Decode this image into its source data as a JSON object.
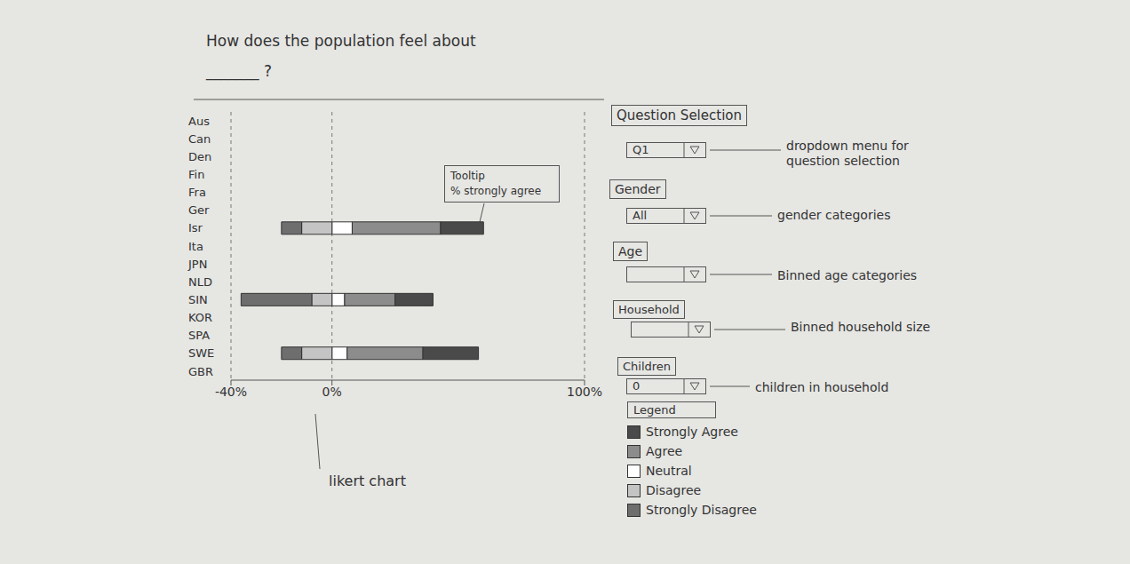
{
  "title": [
    "How does the population feel about",
    "_______ ?"
  ],
  "chart_data": {
    "type": "bar",
    "orientation": "horizontal",
    "stacked": true,
    "grid": true,
    "legend": "right",
    "categories": [
      "Aus",
      "Can",
      "Den",
      "Fin",
      "Fra",
      "Ger",
      "Isr",
      "Ita",
      "JPN",
      "NLD",
      "SIN",
      "KOR",
      "SPA",
      "SWE",
      "GBR"
    ],
    "xlim": [
      -40,
      100
    ],
    "xticks": [
      {
        "value": -40,
        "label": "-40%"
      },
      {
        "value": 0,
        "label": "0%"
      },
      {
        "value": 100,
        "label": "100%"
      }
    ],
    "series": [
      {
        "name": "Strongly Agree",
        "color": "#4a4a4a",
        "values": [
          null,
          null,
          null,
          null,
          null,
          null,
          17,
          null,
          null,
          null,
          15,
          null,
          null,
          22,
          null
        ]
      },
      {
        "name": "Agree",
        "color": "#8c8c8c",
        "values": [
          null,
          null,
          null,
          null,
          null,
          null,
          35,
          null,
          null,
          null,
          20,
          null,
          null,
          30,
          null
        ]
      },
      {
        "name": "Neutral",
        "color": "#ffffff",
        "values": [
          null,
          null,
          null,
          null,
          null,
          null,
          8,
          null,
          null,
          null,
          5,
          null,
          null,
          6,
          null
        ]
      },
      {
        "name": "Disagree",
        "color": "#c4c4c4",
        "values": [
          null,
          null,
          null,
          null,
          null,
          null,
          -12,
          null,
          null,
          null,
          -8,
          null,
          null,
          -12,
          null
        ]
      },
      {
        "name": "Strongly Disagree",
        "color": "#6e6e6e",
        "values": [
          null,
          null,
          null,
          null,
          null,
          null,
          -8,
          null,
          null,
          null,
          -28,
          null,
          null,
          -8,
          null
        ]
      }
    ]
  },
  "tooltip": {
    "title": "Tooltip",
    "text": "% strongly agree"
  },
  "caption": "likert chart",
  "legend_title": "Legend",
  "controls": [
    {
      "label": "Question Selection",
      "value": "Q1",
      "note": "dropdown menu for question selection"
    },
    {
      "label": "Gender",
      "value": "All",
      "note": "gender categories"
    },
    {
      "label": "Age",
      "note": "Binned age categories"
    },
    {
      "label": "Household",
      "note": "Binned household size"
    },
    {
      "label": "Children",
      "value": "0",
      "note": "children in household"
    }
  ]
}
